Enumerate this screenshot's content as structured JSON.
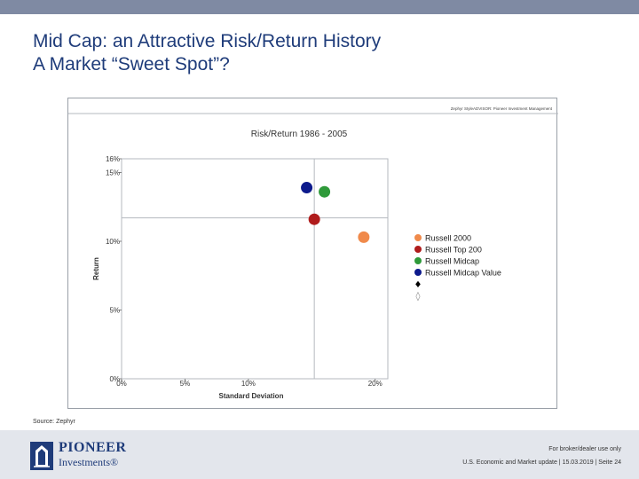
{
  "slide": {
    "title_line1": "Mid Cap: an Attractive Risk/Return History",
    "title_line2": "A Market “Sweet Spot”?",
    "source": "Source: Zephyr"
  },
  "footer": {
    "logo_name": "PIONEER",
    "logo_sub": "Investments®",
    "disclaimer": "For broker/dealer use only",
    "meta": "U.S. Economic and Market update | 15.03.2019 | Seite 24"
  },
  "colors": {
    "title": "#1f3c7a",
    "russell_2000": "#f08a4b",
    "russell_top_200": "#b01c1c",
    "russell_midcap": "#2f9a3a",
    "russell_midcap_value": "#0d1a8c"
  },
  "chart_data": {
    "type": "scatter",
    "credit": "Zephyr StyleADVISOR: Pioneer Investment Management",
    "title": "Risk/Return 1986 - 2005",
    "xlabel": "Standard Deviation",
    "ylabel": "Return",
    "xlim": [
      0,
      21
    ],
    "ylim": [
      0,
      16
    ],
    "x_ticks": [
      {
        "value": 0,
        "label": "0%"
      },
      {
        "value": 5,
        "label": "5%"
      },
      {
        "value": 10,
        "label": "10%"
      },
      {
        "value": 20,
        "label": "20%"
      }
    ],
    "y_ticks": [
      {
        "value": 0,
        "label": "0%"
      },
      {
        "value": 5,
        "label": "5%"
      },
      {
        "value": 10,
        "label": "10%"
      },
      {
        "value": 15,
        "label": "15%"
      },
      {
        "value": 16,
        "label": "16%"
      }
    ],
    "reference_lines": {
      "x": 15.2,
      "y": 11.7
    },
    "series": [
      {
        "name": "Russell 2000",
        "x": 19.1,
        "y": 10.3,
        "color": "#f08a4b"
      },
      {
        "name": "Russell Top 200",
        "x": 15.2,
        "y": 11.6,
        "color": "#b01c1c"
      },
      {
        "name": "Russell Midcap",
        "x": 16.0,
        "y": 13.6,
        "color": "#2f9a3a"
      },
      {
        "name": "Russell Midcap Value",
        "x": 14.6,
        "y": 13.9,
        "color": "#0d1a8c"
      }
    ],
    "legend_extra_markers": [
      {
        "symbol": "♦",
        "color": "#000000"
      },
      {
        "symbol": "◊",
        "color": "#888888"
      }
    ],
    "legend_position": "right"
  }
}
